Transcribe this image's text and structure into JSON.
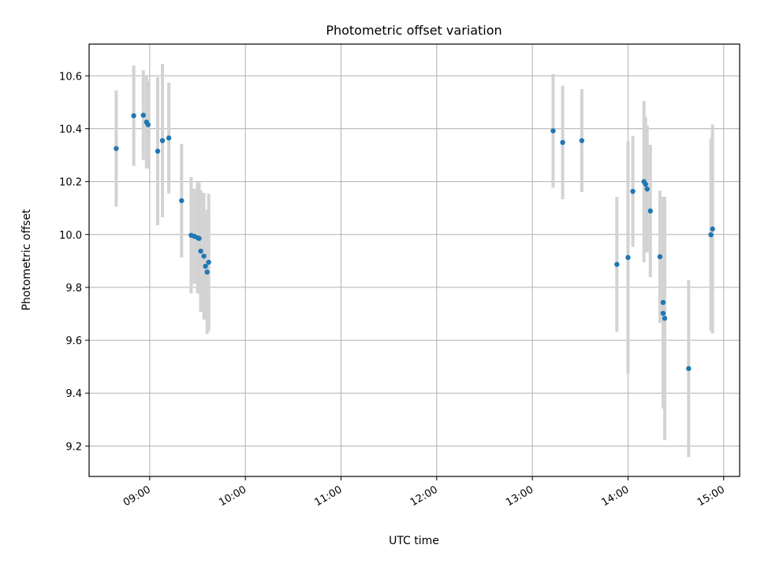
{
  "chart_data": {
    "type": "scatter",
    "title": "Photometric offset variation",
    "xlabel": "UTC time",
    "ylabel": "Photometric offset",
    "xlim": [
      "08:22",
      "15:10"
    ],
    "ylim": [
      9.085,
      10.72
    ],
    "grid": true,
    "x_ticks": [
      "09:00",
      "10:00",
      "11:00",
      "12:00",
      "13:00",
      "14:00",
      "15:00"
    ],
    "y_ticks": [
      9.2,
      9.4,
      9.6,
      9.8,
      10.0,
      10.2,
      10.4,
      10.6
    ],
    "colors": {
      "marker": "#1f77b4",
      "errorbar": "#d3d3d3",
      "grid": "#b0b0b0"
    },
    "points": [
      {
        "x": "08:39",
        "y": 10.325,
        "err": 0.22
      },
      {
        "x": "08:50",
        "y": 10.449,
        "err": 0.19
      },
      {
        "x": "08:56",
        "y": 10.451,
        "err": 0.17
      },
      {
        "x": "08:58",
        "y": 10.425,
        "err": 0.175
      },
      {
        "x": "08:59",
        "y": 10.415,
        "err": 0.165
      },
      {
        "x": "09:05",
        "y": 10.315,
        "err": 0.28
      },
      {
        "x": "09:08",
        "y": 10.355,
        "err": 0.29
      },
      {
        "x": "09:12",
        "y": 10.365,
        "err": 0.21
      },
      {
        "x": "09:20",
        "y": 10.128,
        "err": 0.215
      },
      {
        "x": "09:26",
        "y": 9.997,
        "err": 0.22
      },
      {
        "x": "09:28",
        "y": 9.993,
        "err": 0.18
      },
      {
        "x": "09:30",
        "y": 9.988,
        "err": 0.21
      },
      {
        "x": "09:31",
        "y": 9.985,
        "err": 0.21
      },
      {
        "x": "09:32",
        "y": 9.937,
        "err": 0.23
      },
      {
        "x": "09:34",
        "y": 9.918,
        "err": 0.24
      },
      {
        "x": "09:35",
        "y": 9.88,
        "err": 0.2
      },
      {
        "x": "09:36",
        "y": 9.858,
        "err": 0.235
      },
      {
        "x": "09:37",
        "y": 9.895,
        "err": 0.26
      },
      {
        "x": "13:13",
        "y": 10.392,
        "err": 0.215
      },
      {
        "x": "13:19",
        "y": 10.348,
        "err": 0.215
      },
      {
        "x": "13:31",
        "y": 10.355,
        "err": 0.195
      },
      {
        "x": "13:53",
        "y": 9.887,
        "err": 0.255
      },
      {
        "x": "14:00",
        "y": 9.913,
        "err": 0.44
      },
      {
        "x": "14:03",
        "y": 10.163,
        "err": 0.21
      },
      {
        "x": "14:10",
        "y": 10.2,
        "err": 0.305
      },
      {
        "x": "14:11",
        "y": 10.19,
        "err": 0.255
      },
      {
        "x": "14:12",
        "y": 10.172,
        "err": 0.24
      },
      {
        "x": "14:14",
        "y": 10.089,
        "err": 0.25
      },
      {
        "x": "14:20",
        "y": 9.916,
        "err": 0.25
      },
      {
        "x": "14:22",
        "y": 9.743,
        "err": 0.4
      },
      {
        "x": "14:22",
        "y": 9.702,
        "err": 0.36
      },
      {
        "x": "14:23",
        "y": 9.683,
        "err": 0.46
      },
      {
        "x": "14:38",
        "y": 9.493,
        "err": 0.335
      },
      {
        "x": "14:52",
        "y": 9.999,
        "err": 0.365
      },
      {
        "x": "14:53",
        "y": 10.021,
        "err": 0.395
      }
    ]
  }
}
